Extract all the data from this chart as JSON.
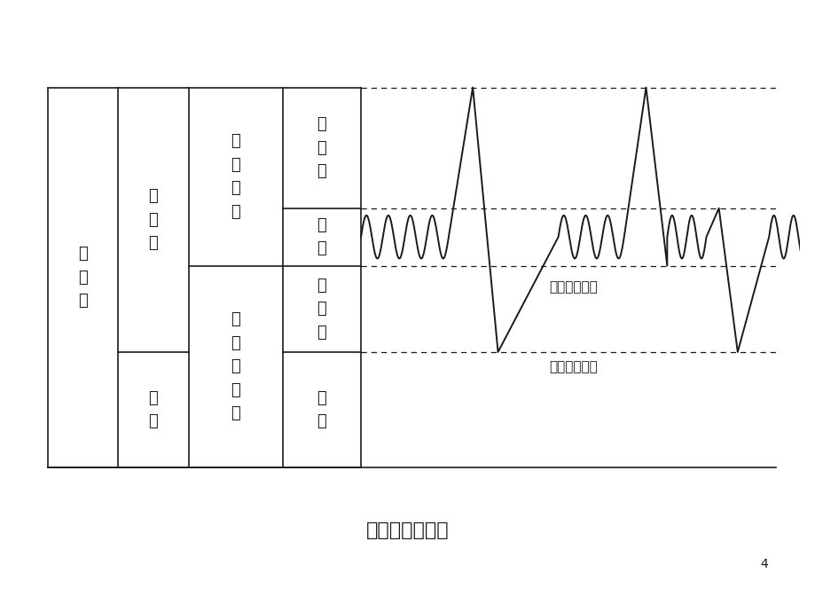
{
  "title": "肺容积及其组成",
  "page_number": "4",
  "background_color": "#ffffff",
  "line_color": "#1a1a1a",
  "table_labels": {
    "col1": "肺\n总\n量",
    "col2_top": "肺\n活\n量",
    "col2_bot": "残\n气",
    "col3_top": "深\n吸\n气\n量",
    "col3_bot": "功\n能\n残\n气\n量",
    "col4_irv": "补\n吸\n气",
    "col4_tv": "潮\n气",
    "col4_erv": "补\n呼\n气",
    "col4_rv": "残\n气"
  },
  "annotations": {
    "ping_jing": "平静呼吸基线",
    "zui_da": "最大呼气基线"
  }
}
